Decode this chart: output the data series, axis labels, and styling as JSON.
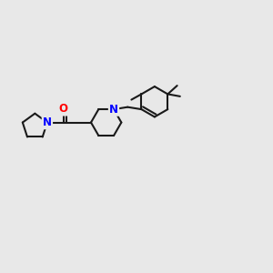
{
  "bg_color": "#e8e8e8",
  "bond_color": "#1a1a1a",
  "N_color": "#0000ff",
  "O_color": "#ff0000",
  "line_width": 1.5,
  "font_size_atom": 8.5,
  "fig_width": 3.0,
  "fig_height": 3.0,
  "xlim": [
    0,
    12
  ],
  "ylim": [
    0,
    10
  ]
}
